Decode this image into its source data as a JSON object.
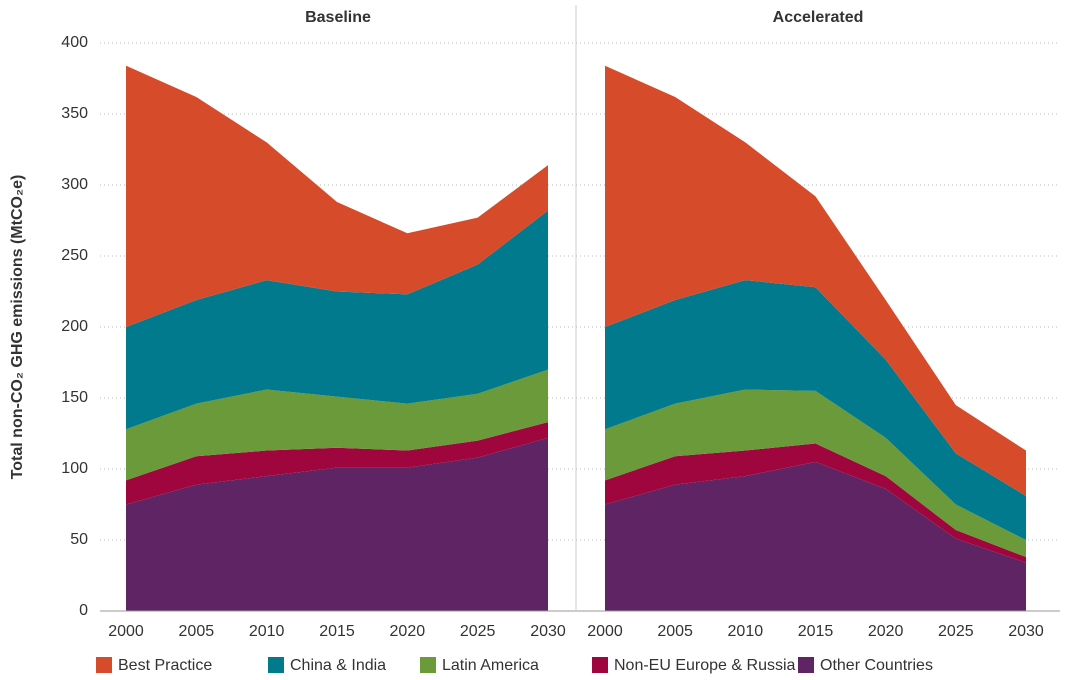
{
  "chart_data": [
    {
      "type": "stacked_area",
      "title": "Baseline",
      "y_label": "Total non-CO₂ GHG emissions (MtCO₂e)",
      "x": [
        2000,
        2005,
        2010,
        2015,
        2020,
        2025,
        2030
      ],
      "xticks": [
        2000,
        2005,
        2010,
        2015,
        2020,
        2025,
        2030
      ],
      "ylim": [
        0,
        400
      ],
      "yticks": [
        0,
        50,
        100,
        150,
        200,
        250,
        300,
        350,
        400
      ],
      "grid": true,
      "series": [
        {
          "name": "Other Countries",
          "color": "#5f2464",
          "values": [
            75,
            89,
            95,
            101,
            101,
            108,
            122
          ]
        },
        {
          "name": "Non-EU Europe & Russia",
          "color": "#a0063e",
          "values": [
            17,
            20,
            18,
            14,
            12,
            12,
            11
          ]
        },
        {
          "name": "Latin America",
          "color": "#6a9a3a",
          "values": [
            36,
            37,
            43,
            36,
            33,
            33,
            37
          ]
        },
        {
          "name": "China & India",
          "color": "#007a8c",
          "values": [
            72,
            73,
            77,
            74,
            77,
            91,
            112
          ]
        },
        {
          "name": "Best Practice",
          "color": "#d64b2a",
          "values": [
            184,
            143,
            97,
            63,
            43,
            33,
            32
          ]
        }
      ]
    },
    {
      "type": "stacked_area",
      "title": "Accelerated",
      "x": [
        2000,
        2005,
        2010,
        2015,
        2020,
        2025,
        2030
      ],
      "xticks": [
        2000,
        2005,
        2010,
        2015,
        2020,
        2025,
        2030
      ],
      "ylim": [
        0,
        400
      ],
      "grid": true,
      "series": [
        {
          "name": "Other Countries",
          "color": "#5f2464",
          "values": [
            75,
            89,
            95,
            105,
            86,
            51,
            34
          ]
        },
        {
          "name": "Non-EU Europe & Russia",
          "color": "#a0063e",
          "values": [
            17,
            20,
            18,
            13,
            9,
            6,
            4
          ]
        },
        {
          "name": "Latin America",
          "color": "#6a9a3a",
          "values": [
            36,
            37,
            43,
            37,
            27,
            18,
            12
          ]
        },
        {
          "name": "China & India",
          "color": "#007a8c",
          "values": [
            72,
            73,
            77,
            73,
            55,
            36,
            31
          ]
        },
        {
          "name": "Best Practice",
          "color": "#d64b2a",
          "values": [
            184,
            143,
            97,
            64,
            42,
            34,
            32
          ]
        }
      ]
    }
  ]
}
